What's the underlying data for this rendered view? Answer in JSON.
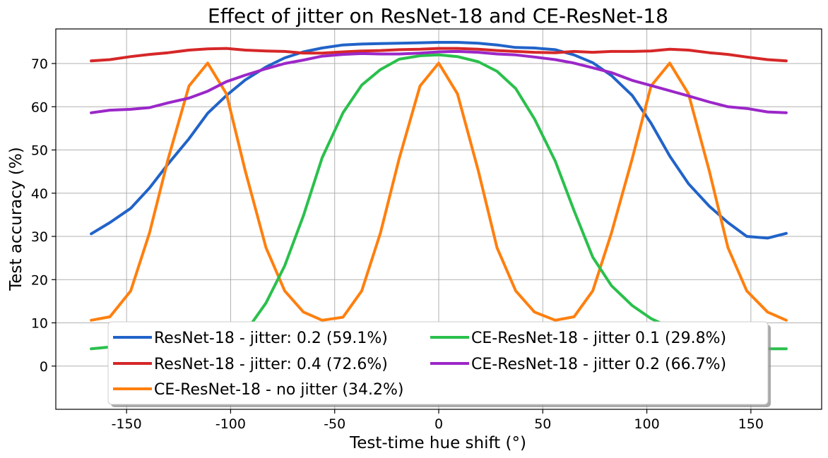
{
  "chart_data": {
    "type": "line",
    "title": "Effect of jitter on ResNet-18 and CE-ResNet-18",
    "xlabel": "Test-time hue shift (°)",
    "ylabel": "Test accuracy (%)",
    "xlim": [
      -184,
      184
    ],
    "ylim": [
      -10,
      78
    ],
    "xticks": [
      -150,
      -100,
      -50,
      0,
      50,
      100,
      150
    ],
    "xtick_labels": [
      "-150",
      "-100",
      "-50",
      "0",
      "50",
      "100",
      "150"
    ],
    "yticks": [
      0,
      10,
      20,
      30,
      40,
      50,
      60,
      70
    ],
    "ytick_labels": [
      "0",
      "10",
      "20",
      "30",
      "40",
      "50",
      "60",
      "70"
    ],
    "grid": true,
    "legend_position": "lower-center",
    "x": [
      -167,
      -158,
      -148,
      -139,
      -130,
      -120,
      -111,
      -102,
      -93,
      -83,
      -74,
      -65,
      -56,
      -46,
      -37,
      -28,
      -19,
      -9,
      0,
      9,
      19,
      28,
      37,
      46,
      56,
      65,
      74,
      83,
      93,
      102,
      111,
      120,
      130,
      139,
      148,
      158,
      167
    ],
    "series": [
      {
        "name": "ResNet-18 - jitter: 0.2 (59.1%)",
        "color": "#2163c8",
        "values": [
          30.6,
          33.2,
          36.5,
          41.2,
          46.8,
          52.6,
          58.5,
          62.6,
          66.2,
          69.2,
          71.3,
          72.7,
          73.6,
          74.3,
          74.5,
          74.6,
          74.7,
          74.8,
          74.9,
          74.9,
          74.7,
          74.3,
          73.7,
          73.6,
          73.2,
          72.0,
          70.2,
          67.2,
          62.6,
          56.2,
          48.6,
          42.2,
          37.0,
          33.2,
          30.0,
          29.6,
          30.7
        ]
      },
      {
        "name": "ResNet-18 - jitter: 0.4 (72.6%)",
        "color": "#d62728",
        "values": [
          70.6,
          70.9,
          71.6,
          72.1,
          72.5,
          73.1,
          73.4,
          73.5,
          73.1,
          72.9,
          72.8,
          72.4,
          72.4,
          72.7,
          72.9,
          73.0,
          73.2,
          73.3,
          73.5,
          73.5,
          73.3,
          73.0,
          72.8,
          72.6,
          72.5,
          72.8,
          72.6,
          72.8,
          72.8,
          72.9,
          73.3,
          73.1,
          72.5,
          72.1,
          71.5,
          70.9,
          70.6
        ]
      },
      {
        "name": "CE-ResNet-18 - no jitter (34.2%)",
        "color": "#ff7f0e",
        "values": [
          10.6,
          11.4,
          17.4,
          30.8,
          48.0,
          64.8,
          70.1,
          63.0,
          45.2,
          27.4,
          17.4,
          12.5,
          10.6,
          11.3,
          17.4,
          30.8,
          48.0,
          64.8,
          70.1,
          63.0,
          45.2,
          27.4,
          17.4,
          12.5,
          10.6,
          11.4,
          17.4,
          30.8,
          48.0,
          64.8,
          70.1,
          63.0,
          45.2,
          27.4,
          17.4,
          12.5,
          10.6
        ]
      },
      {
        "name": "CE-ResNet-18 - jitter 0.1 (29.8%)",
        "color": "#2ac04c",
        "values": [
          4.0,
          4.4,
          4.5,
          4.6,
          4.8,
          5.0,
          5.1,
          5.6,
          7.8,
          14.6,
          23.2,
          34.8,
          48.2,
          58.6,
          65.0,
          68.6,
          71.0,
          71.8,
          72.0,
          71.6,
          70.4,
          68.2,
          64.2,
          57.2,
          47.4,
          36.0,
          25.2,
          18.6,
          14.0,
          11.0,
          9.0,
          7.6,
          6.0,
          5.0,
          4.2,
          4.0,
          4.0
        ]
      },
      {
        "name": "CE-ResNet-18 - jitter 0.2 (66.7%)",
        "color": "#9b27c8",
        "values": [
          58.6,
          59.2,
          59.4,
          59.8,
          60.9,
          62.0,
          63.6,
          65.8,
          67.3,
          68.8,
          70.0,
          70.8,
          71.7,
          72.1,
          72.3,
          72.2,
          72.2,
          72.4,
          72.7,
          72.8,
          72.6,
          72.2,
          72.0,
          71.5,
          70.9,
          70.1,
          69.0,
          67.9,
          66.1,
          64.9,
          63.7,
          62.5,
          61.1,
          60.0,
          59.6,
          58.8,
          58.6
        ]
      }
    ]
  }
}
